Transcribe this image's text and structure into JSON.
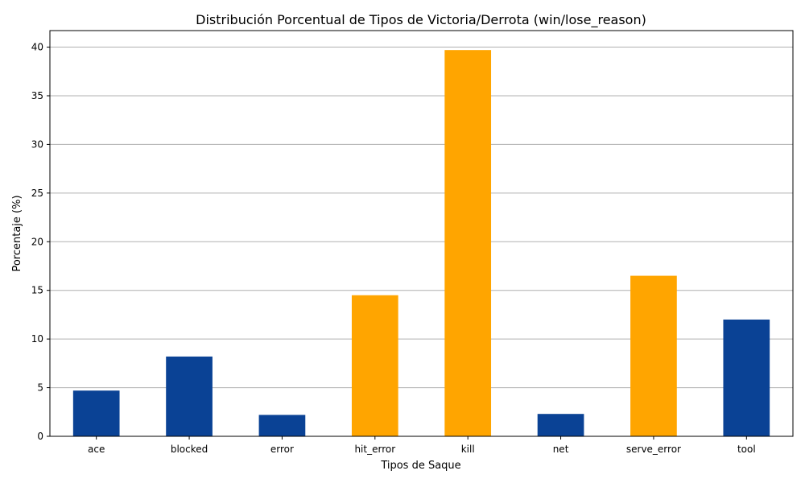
{
  "chart_data": {
    "type": "bar",
    "title": "Distribución Porcentual de Tipos de Victoria/Derrota (win/lose_reason)",
    "xlabel": "Tipos de Saque",
    "ylabel": "Porcentaje (%)",
    "categories": [
      "ace",
      "blocked",
      "error",
      "hit_error",
      "kill",
      "net",
      "serve_error",
      "tool"
    ],
    "values": [
      4.7,
      8.2,
      2.2,
      14.5,
      39.7,
      2.3,
      16.5,
      12.0
    ],
    "bar_colors": [
      "#0a4295",
      "#0a4295",
      "#0a4295",
      "#ffa500",
      "#ffa500",
      "#0a4295",
      "#ffa500",
      "#0a4295"
    ],
    "ylim": [
      0,
      41.7
    ],
    "yticks": [
      0,
      5,
      10,
      15,
      20,
      25,
      30,
      35,
      40
    ],
    "grid": "y-major",
    "legend": "none"
  }
}
